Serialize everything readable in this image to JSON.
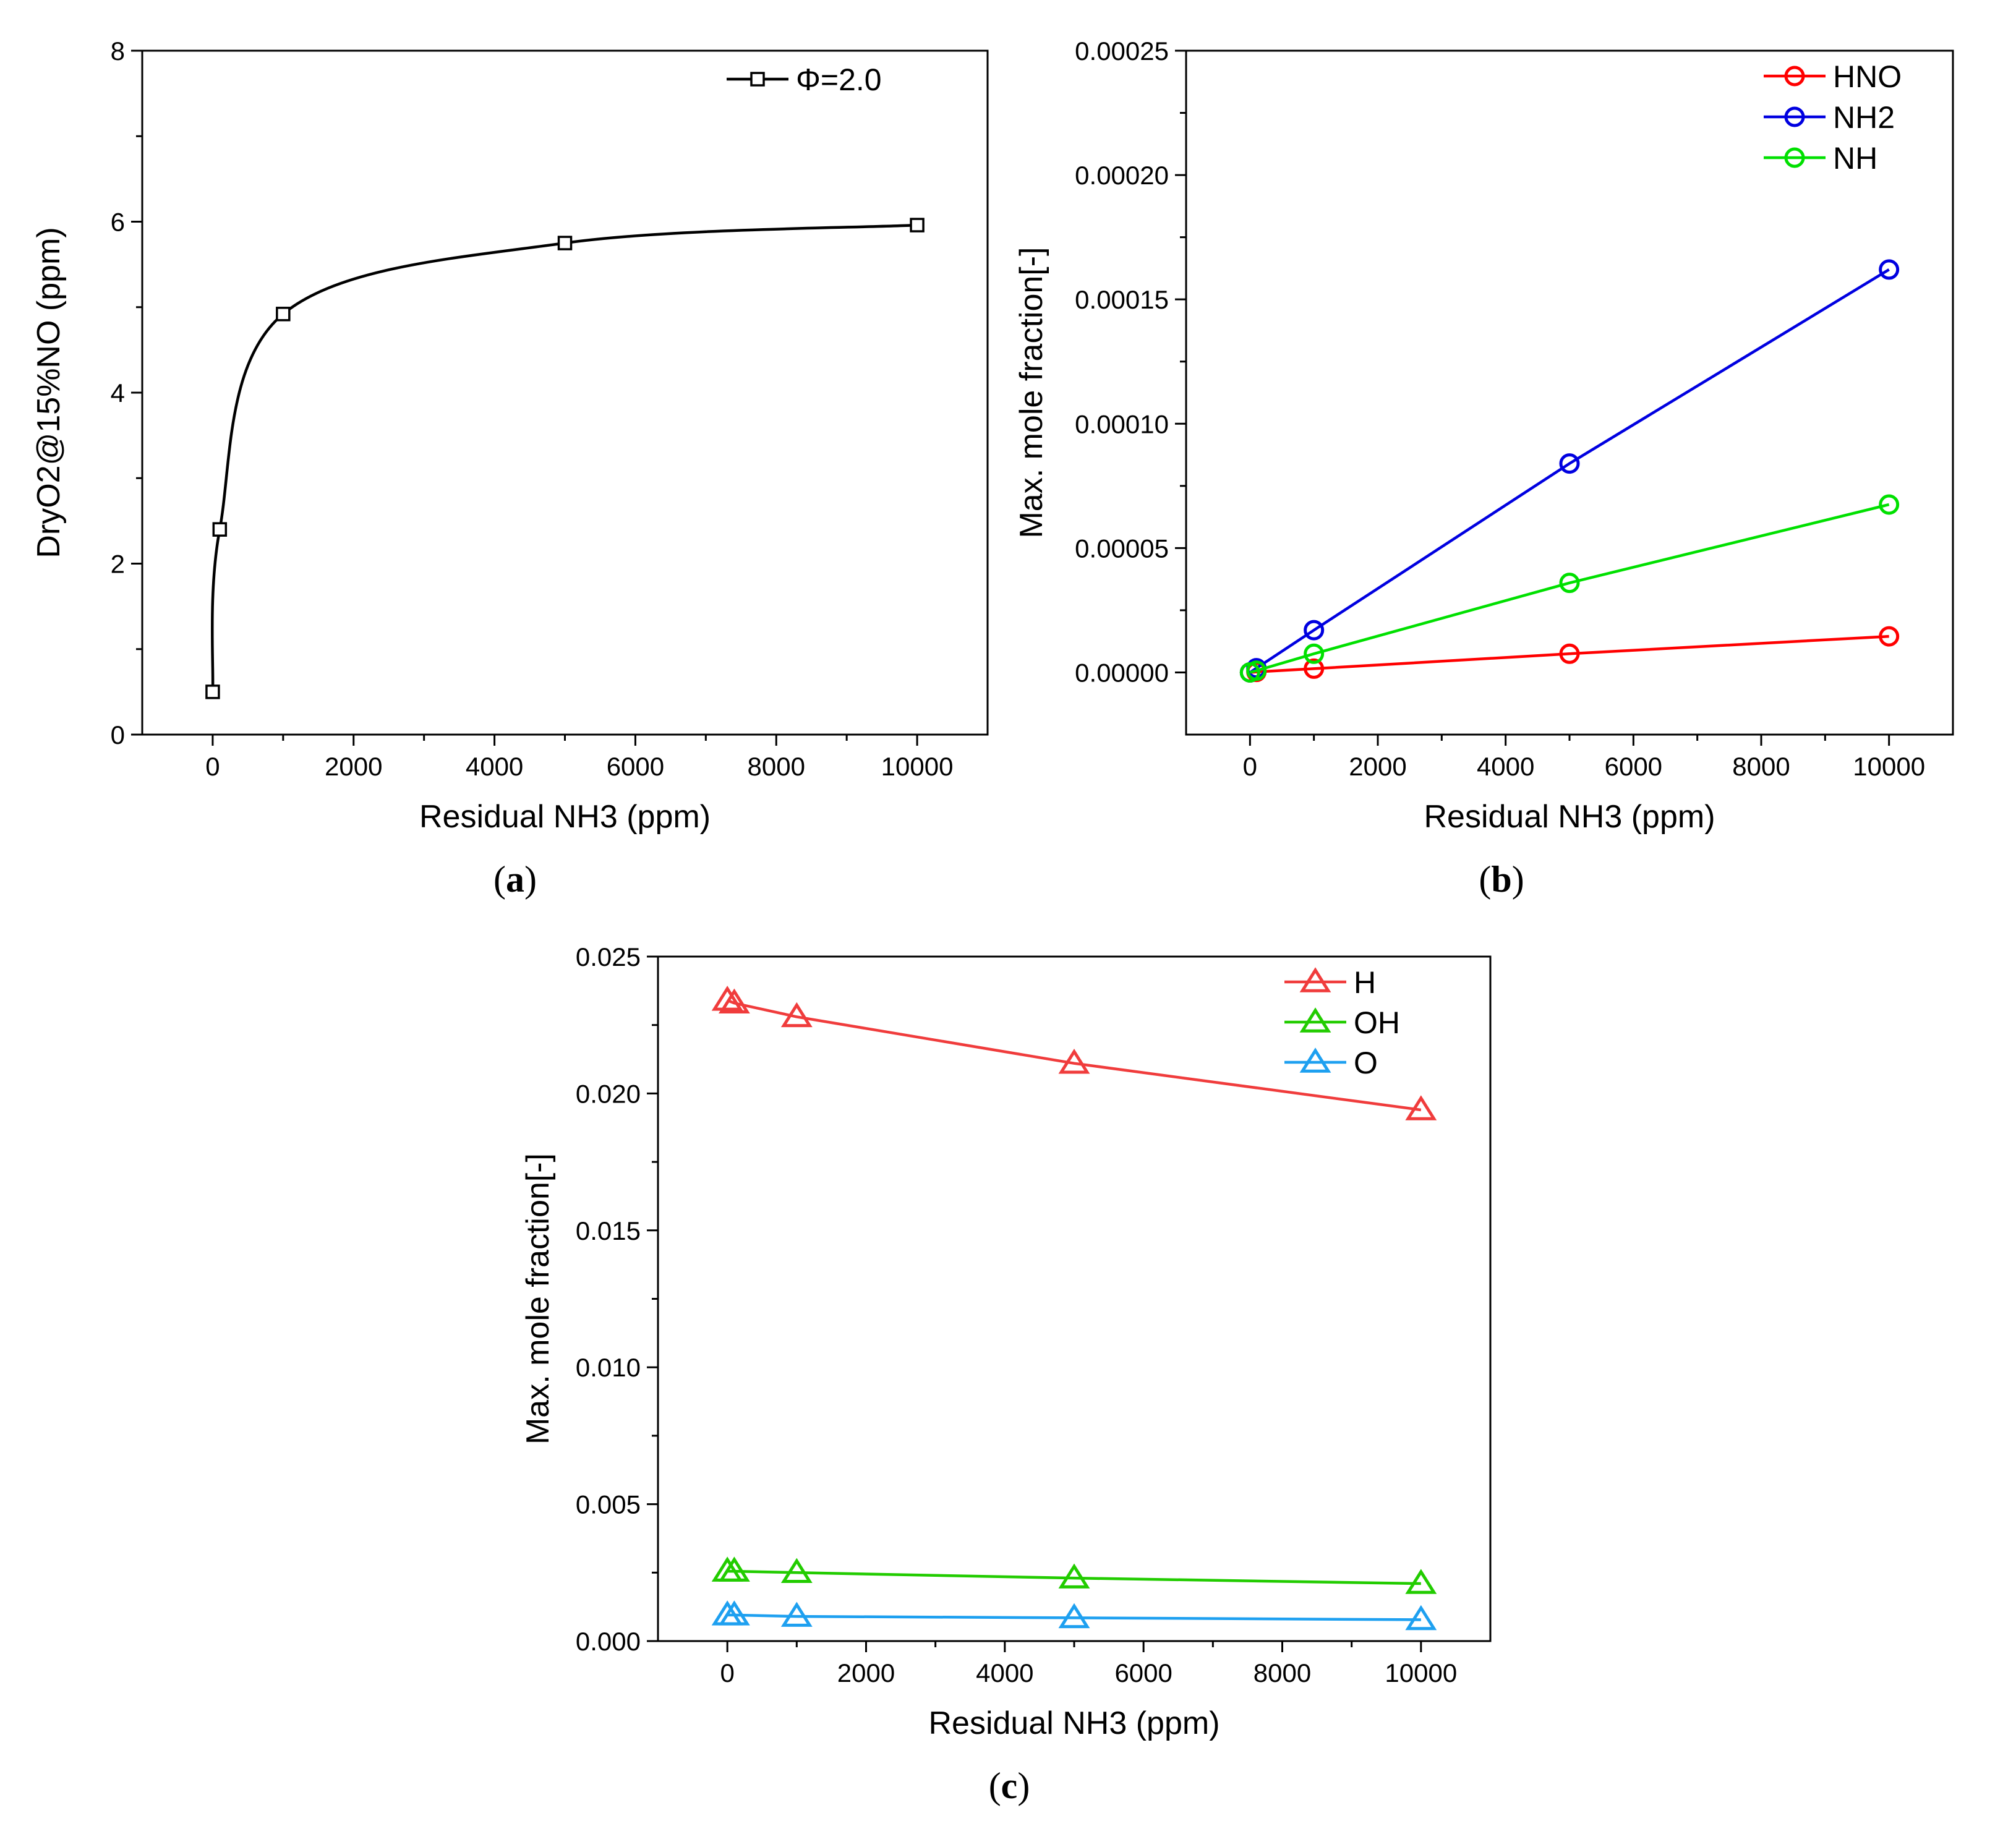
{
  "chart_data": [
    {
      "id": "a",
      "type": "line",
      "caption_letter": "a",
      "xlabel": "Residual NH3 (ppm)",
      "ylabel": "DryO2@15%NO (ppm)",
      "xlim": [
        -1000,
        11000
      ],
      "ylim": [
        0,
        8
      ],
      "xticks": [
        "0",
        "2000",
        "4000",
        "6000",
        "8000",
        "10000"
      ],
      "yticks": [
        "0",
        "2",
        "4",
        "6",
        "8"
      ],
      "series": [
        {
          "name": "Φ=2.0",
          "color": "#000000",
          "marker": "square",
          "smooth": true,
          "x": [
            0,
            100,
            1000,
            5000,
            10000
          ],
          "y": [
            0.5,
            2.4,
            4.92,
            5.75,
            5.96
          ]
        }
      ]
    },
    {
      "id": "b",
      "type": "line",
      "caption_letter": "b",
      "xlabel": "Residual NH3 (ppm)",
      "ylabel": "Max. mole fraction[-]",
      "xlim": [
        -1000,
        11000
      ],
      "ylim": [
        -2.5e-05,
        0.00025
      ],
      "xticks": [
        "0",
        "2000",
        "4000",
        "6000",
        "8000",
        "10000"
      ],
      "yticks": [
        "0.00000",
        "0.00005",
        "0.00010",
        "0.00015",
        "0.00020",
        "0.00025"
      ],
      "series": [
        {
          "name": "HNO",
          "color": "#ff0000",
          "marker": "circle",
          "x": [
            0,
            100,
            1000,
            5000,
            10000
          ],
          "y": [
            0.0,
            2e-07,
            1.5e-06,
            7.5e-06,
            1.45e-05
          ]
        },
        {
          "name": "NH2",
          "color": "#0000e0",
          "marker": "circle",
          "x": [
            0,
            100,
            1000,
            5000,
            10000
          ],
          "y": [
            0.0,
            1.7e-06,
            1.7e-05,
            8.4e-05,
            0.000162
          ]
        },
        {
          "name": "NH",
          "color": "#00e000",
          "marker": "circle",
          "x": [
            0,
            100,
            1000,
            5000,
            10000
          ],
          "y": [
            0.0,
            7e-07,
            7.5e-06,
            3.6e-05,
            6.75e-05
          ]
        }
      ]
    },
    {
      "id": "c",
      "type": "line",
      "caption_letter": "c",
      "xlabel": "Residual NH3 (ppm)",
      "ylabel": "Max. mole fraction[-]",
      "xlim": [
        -1000,
        11000
      ],
      "ylim": [
        0,
        0.025
      ],
      "xticks": [
        "0",
        "2000",
        "4000",
        "6000",
        "8000",
        "10000"
      ],
      "yticks": [
        "0.000",
        "0.005",
        "0.010",
        "0.015",
        "0.020",
        "0.025"
      ],
      "series": [
        {
          "name": "H",
          "color": "#f03c3c",
          "marker": "triangle",
          "x": [
            0,
            100,
            1000,
            5000,
            10000
          ],
          "y": [
            0.0234,
            0.0233,
            0.0228,
            0.0211,
            0.0194
          ]
        },
        {
          "name": "OH",
          "color": "#22cc00",
          "marker": "triangle",
          "x": [
            0,
            100,
            1000,
            5000,
            10000
          ],
          "y": [
            0.00255,
            0.00255,
            0.0025,
            0.0023,
            0.0021
          ]
        },
        {
          "name": "O",
          "color": "#1ea0f0",
          "marker": "triangle",
          "x": [
            0,
            100,
            1000,
            5000,
            10000
          ],
          "y": [
            0.00095,
            0.00095,
            0.0009,
            0.00085,
            0.00078
          ]
        }
      ]
    }
  ]
}
